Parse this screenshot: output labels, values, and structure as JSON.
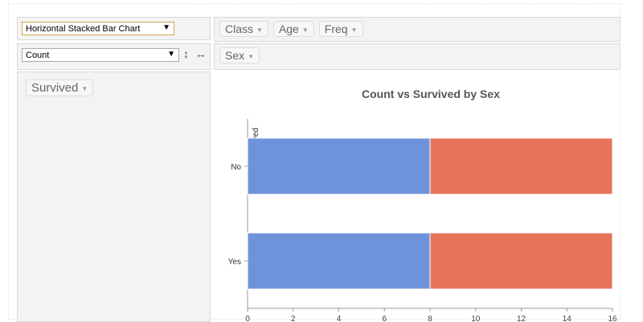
{
  "renderer": {
    "selected": "Horizontal Stacked Bar Chart"
  },
  "aggregator": {
    "selected": "Count",
    "sort_icons": [
      "↕",
      "↔"
    ]
  },
  "top_fields": [
    {
      "label": "Class"
    },
    {
      "label": "Age"
    },
    {
      "label": "Freq"
    }
  ],
  "col_fields": [
    {
      "label": "Sex"
    }
  ],
  "row_fields": [
    {
      "label": "Survived"
    }
  ],
  "chart_data": {
    "type": "bar",
    "orientation": "horizontal",
    "stacked": true,
    "title": "Count vs Survived by Sex",
    "ylabel": "Survived",
    "categories": [
      "No",
      "Yes"
    ],
    "series": [
      {
        "values": [
          8,
          8
        ],
        "color": "#6f93db"
      },
      {
        "values": [
          8,
          8
        ],
        "color": "#e7745a"
      }
    ],
    "xlim": [
      0,
      16
    ],
    "xticks": [
      0,
      2,
      4,
      6,
      8,
      10,
      12,
      14,
      16
    ],
    "grid": false
  }
}
